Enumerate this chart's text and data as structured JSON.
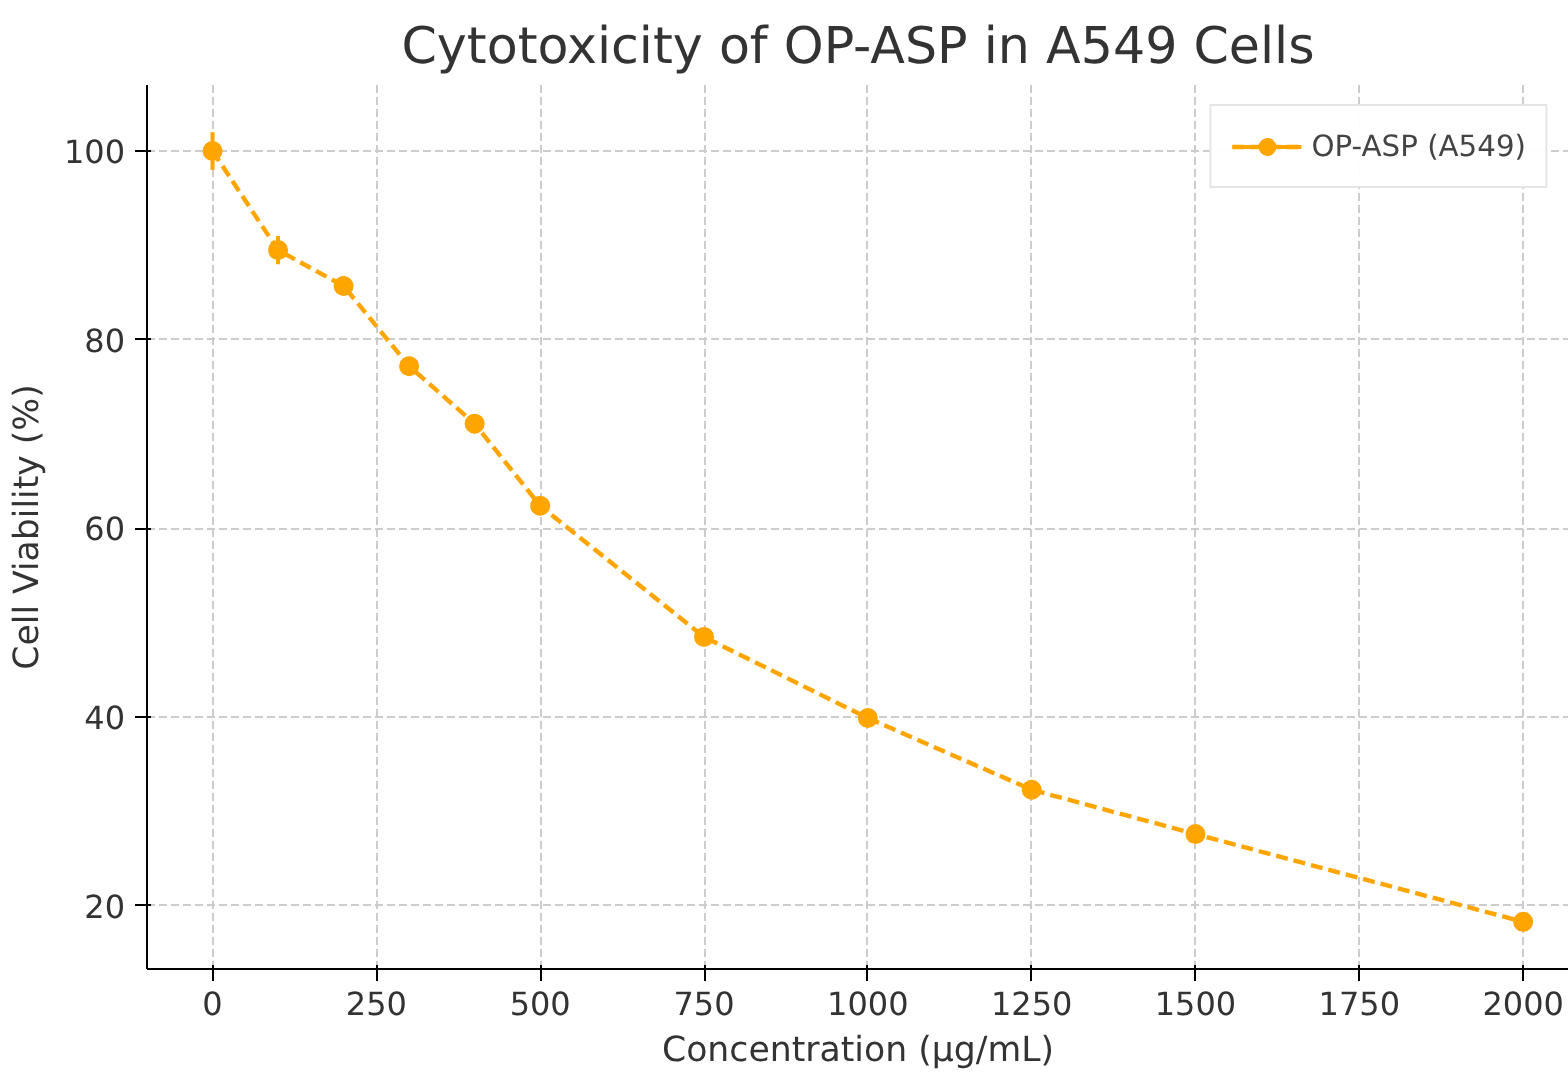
{
  "chart_data": {
    "type": "line",
    "title": "Cytotoxicity of OP-ASP in A549 Cells",
    "xlabel": "Concentration (µg/mL)",
    "ylabel": "Cell Viability (%)",
    "x": [
      0,
      100,
      200,
      300,
      400,
      500,
      750,
      1000,
      1250,
      1500,
      2000
    ],
    "series": [
      {
        "name": "OP-ASP (A549)",
        "color": "#ffa500",
        "values": [
          100,
          89.5,
          85.7,
          77.2,
          71.1,
          62.4,
          48.5,
          39.9,
          32.3,
          27.6,
          18.3
        ],
        "errors": [
          2,
          1.5,
          1,
          1,
          1,
          0.8,
          0.8,
          0.6,
          0.6,
          0.6,
          0.6
        ]
      }
    ],
    "xlim": [
      -100,
      2070
    ],
    "ylim": [
      13.3,
      107
    ],
    "xticks": [
      0,
      250,
      500,
      750,
      1000,
      1250,
      1500,
      1750,
      2000
    ],
    "yticks": [
      20,
      40,
      60,
      80,
      100
    ],
    "grid": true,
    "legend": "top right",
    "marker": "circle",
    "line_style": "dashed"
  }
}
